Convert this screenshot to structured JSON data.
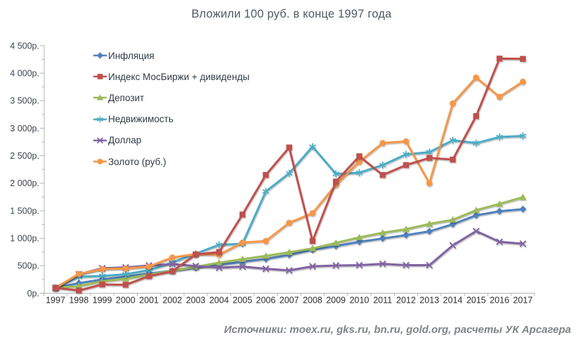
{
  "title": "Вложили 100 руб. в конце 1997 года",
  "footer": "Источники: moex.ru, gks.ru, bn.ru, gold.org, расчеты УК Арсагера",
  "chart_data": {
    "type": "line",
    "title": "Вложили 100 руб. в конце 1997 года",
    "x": [
      "1997",
      "1998",
      "1999",
      "2000",
      "2001",
      "2002",
      "2003",
      "2004",
      "2005",
      "2006",
      "2007",
      "2008",
      "2009",
      "2010",
      "2011",
      "2012",
      "2013",
      "2014",
      "2015",
      "2016",
      "2017"
    ],
    "series": [
      {
        "key": "inflation",
        "name": "Инфляция",
        "color": "#4F81BD",
        "marker": "diamond",
        "values": [
          100,
          184,
          251,
          302,
          358,
          412,
          461,
          515,
          571,
          623,
          697,
          789,
          859,
          935,
          995,
          1057,
          1125,
          1254,
          1416,
          1491,
          1529
        ]
      },
      {
        "key": "moex-index",
        "name": "Индекс МосБиржи + дивиденды",
        "color": "#C0504D",
        "marker": "square",
        "values": [
          100,
          50,
          160,
          155,
          310,
          400,
          705,
          750,
          1430,
          2150,
          2650,
          950,
          2030,
          2490,
          2150,
          2330,
          2460,
          2430,
          3220,
          4265,
          4260
        ]
      },
      {
        "key": "deposit",
        "name": "Депозит",
        "color": "#9BBB59",
        "marker": "triangle",
        "values": [
          100,
          130,
          215,
          265,
          335,
          410,
          480,
          555,
          620,
          680,
          745,
          815,
          915,
          1015,
          1100,
          1165,
          1260,
          1335,
          1510,
          1625,
          1745
        ]
      },
      {
        "key": "real-estate",
        "name": "Недвижимость",
        "color": "#4BACC6",
        "marker": "star",
        "values": [
          100,
          300,
          315,
          345,
          420,
          560,
          720,
          880,
          900,
          1850,
          2180,
          2665,
          2170,
          2190,
          2330,
          2525,
          2565,
          2780,
          2730,
          2840,
          2860
        ]
      },
      {
        "key": "dollar",
        "name": "Доллар",
        "color": "#8064A2",
        "marker": "x",
        "values": [
          100,
          345,
          455,
          470,
          505,
          530,
          495,
          465,
          485,
          445,
          415,
          490,
          505,
          510,
          535,
          510,
          510,
          870,
          1130,
          935,
          900
        ]
      },
      {
        "key": "gold",
        "name": "Золото (руб.)",
        "color": "#F79646",
        "marker": "circle",
        "values": [
          100,
          350,
          440,
          450,
          485,
          650,
          710,
          700,
          920,
          950,
          1280,
          1455,
          1970,
          2390,
          2730,
          2760,
          2000,
          3450,
          3920,
          3570,
          3845
        ]
      }
    ],
    "ylim": [
      0,
      4500
    ],
    "ytick_step": 500,
    "y_tick_labels": [
      "0р.",
      "500р.",
      "1 000р.",
      "1 500р.",
      "2 000р.",
      "2 500р.",
      "3 000р.",
      "3 500р.",
      "4 000р.",
      "4 500р."
    ],
    "grid": false,
    "legend_position": "top-left-inside"
  }
}
